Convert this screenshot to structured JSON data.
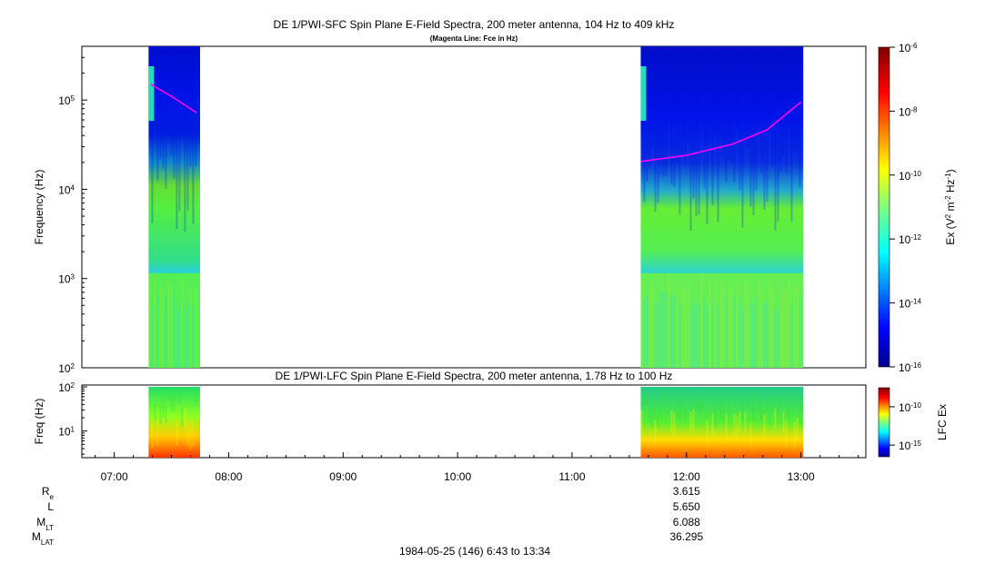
{
  "chart_data": [
    {
      "type": "heatmap",
      "title": "DE 1/PWI-SFC  Spin Plane E-Field Spectra, 200 meter antenna, 104 Hz to 409 kHz",
      "subtitle": "(Magenta Line: Fce in Hz)",
      "ylabel": "Frequency (Hz)",
      "yscale": "log",
      "ylim": [
        100,
        400000
      ],
      "yticks": [
        {
          "value": 100,
          "base": "10",
          "exp": "2"
        },
        {
          "value": 1000,
          "base": "10",
          "exp": "3"
        },
        {
          "value": 10000,
          "base": "10",
          "exp": "4"
        },
        {
          "value": 100000,
          "base": "10",
          "exp": "5"
        }
      ],
      "xlim_hours": [
        6.717,
        13.567
      ],
      "data_intervals": [
        {
          "start_hour": 7.3,
          "end_hour": 7.75
        },
        {
          "start_hour": 11.6,
          "end_hour": 13.02
        }
      ],
      "band_gap_hz": [
        1000,
        1150
      ],
      "series": [
        {
          "color": "#ff00ff",
          "points": [
            [
              7.32,
              150000
            ],
            [
              7.5,
              110000
            ],
            [
              7.72,
              72000
            ]
          ]
        },
        {
          "color": "#ff00ff",
          "points": [
            [
              11.6,
              20500
            ],
            [
              12.0,
              24000
            ],
            [
              12.4,
              32000
            ],
            [
              12.7,
              46000
            ],
            [
              13.0,
              95000
            ]
          ]
        }
      ],
      "colorbar": {
        "label_main": "Ex (V",
        "label_sup1": "2",
        "label_mid": " m",
        "label_sup2": "-2",
        "label_mid2": " Hz",
        "label_sup3": "-1",
        "label_end": ")",
        "scale": "log",
        "range": [
          1e-16,
          1e-06
        ],
        "ticks": [
          {
            "value": 1e-06,
            "base": "10",
            "exp": "-6"
          },
          {
            "value": 1e-08,
            "base": "10",
            "exp": "-8"
          },
          {
            "value": 1e-10,
            "base": "10",
            "exp": "-10"
          },
          {
            "value": 1e-12,
            "base": "10",
            "exp": "-12"
          },
          {
            "value": 1e-14,
            "base": "10",
            "exp": "-14"
          },
          {
            "value": 1e-16,
            "base": "10",
            "exp": "-16"
          }
        ]
      }
    },
    {
      "type": "heatmap",
      "title": "DE 1/PWI-LFC  Spin Plane E-Field Spectra, 200 meter antenna, 1.78 Hz to 100 Hz",
      "ylabel": "Freq (Hz)",
      "yscale": "log",
      "ylim": [
        2.5,
        110
      ],
      "yticks": [
        {
          "value": 10,
          "base": "10",
          "exp": "1"
        },
        {
          "value": 100,
          "base": "10",
          "exp": "2"
        }
      ],
      "colorbar": {
        "label": "LFC Ex",
        "scale": "log",
        "ticks": [
          {
            "value": 1e-10,
            "base": "10",
            "exp": "-10"
          },
          {
            "value": 1e-15,
            "base": "10",
            "exp": "-15"
          }
        ]
      }
    }
  ],
  "x_axis": {
    "ticks": [
      {
        "hour": 7,
        "label": "07:00"
      },
      {
        "hour": 8,
        "label": "08:00"
      },
      {
        "hour": 9,
        "label": "09:00"
      },
      {
        "hour": 10,
        "label": "10:00"
      },
      {
        "hour": 11,
        "label": "11:00"
      },
      {
        "hour": 12,
        "label": "12:00"
      },
      {
        "hour": 13,
        "label": "13:00"
      }
    ]
  },
  "ephemeris": {
    "labels": [
      {
        "base": "R",
        "sub": "e"
      },
      {
        "base": "L",
        "sub": ""
      },
      {
        "base": "M",
        "sub": "LT"
      },
      {
        "base": "M",
        "sub": "LAT"
      }
    ],
    "values": [
      "3.615",
      "5.650",
      "6.088",
      "36.295"
    ],
    "at_label": "12:00"
  },
  "footer": "1984-05-25 (146) 6:43 to 13:34"
}
